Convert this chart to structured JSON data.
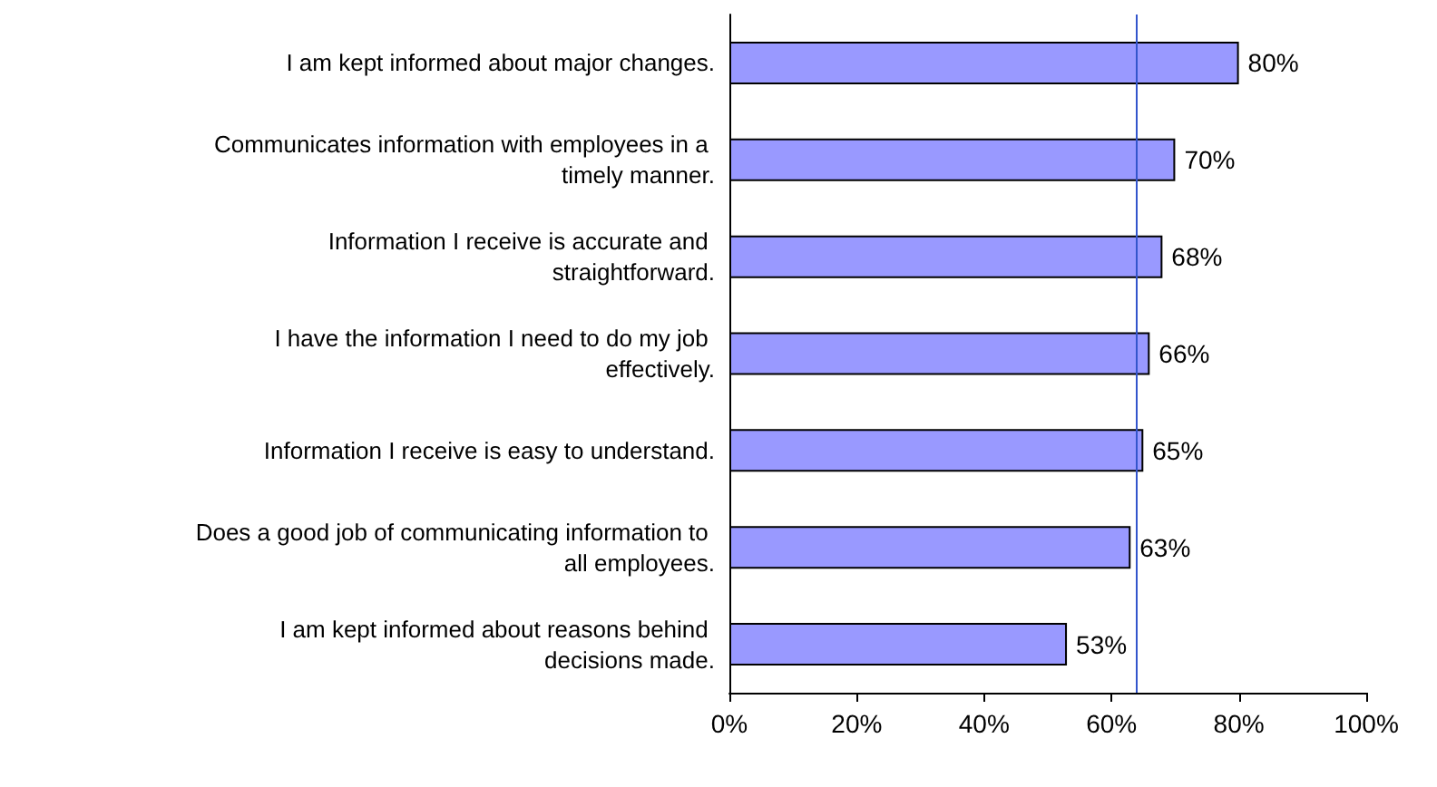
{
  "chart_data": {
    "type": "bar",
    "orientation": "horizontal",
    "categories": [
      "I am kept informed about major changes.",
      "Communicates information with employees in a timely manner.",
      "Information I receive is accurate and straightforward.",
      "I have the information I need to do my job effectively.",
      "Information I receive is easy to understand.",
      "Does a good job of communicating information to all employees.",
      "I am kept informed about reasons behind decisions made."
    ],
    "values": [
      80,
      70,
      68,
      66,
      65,
      63,
      53
    ],
    "value_labels": [
      "80%",
      "70%",
      "68%",
      "66%",
      "65%",
      "63%",
      "53%"
    ],
    "color": "#9999ff",
    "xlim": [
      0,
      100
    ],
    "xticks": [
      {
        "value": 0,
        "label": "0%"
      },
      {
        "value": 20,
        "label": "20%"
      },
      {
        "value": 40,
        "label": "40%"
      },
      {
        "value": 60,
        "label": "60%"
      },
      {
        "value": 80,
        "label": "80%"
      },
      {
        "value": 100,
        "label": "100%"
      }
    ],
    "ref_lines": [
      {
        "axis": "x",
        "value": 64,
        "label": null,
        "color": "#3355cc"
      }
    ],
    "grid": false
  }
}
